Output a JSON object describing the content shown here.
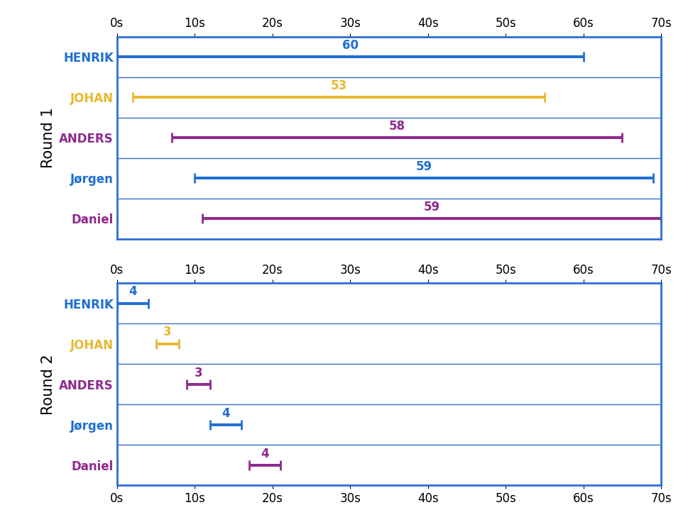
{
  "chart_data": [
    {
      "type": "bar",
      "orientation": "horizontal",
      "ylabel": "Round 1",
      "categories": [
        "HENRIK",
        "JOHAN",
        "ANDERS",
        "Jørgen",
        "Daniel"
      ],
      "starts": [
        0,
        2,
        7,
        10,
        11
      ],
      "values": [
        60,
        53,
        58,
        59,
        59
      ],
      "colors": [
        "#1f6fd1",
        "#e8b830",
        "#8e2a8e",
        "#1f6fd1",
        "#8e2a8e"
      ],
      "data_labels": true,
      "grid": true,
      "xlim": [
        0,
        70
      ],
      "xticks": [
        {
          "value": 0,
          "label": "0s"
        },
        {
          "value": 10,
          "label": "10s"
        },
        {
          "value": 20,
          "label": "20s"
        },
        {
          "value": 30,
          "label": "30s"
        },
        {
          "value": 40,
          "label": "40s"
        },
        {
          "value": 50,
          "label": "50s"
        },
        {
          "value": 60,
          "label": "60s"
        },
        {
          "value": 70,
          "label": "70s"
        }
      ]
    },
    {
      "type": "bar",
      "orientation": "horizontal",
      "ylabel": "Round 2",
      "categories": [
        "HENRIK",
        "JOHAN",
        "ANDERS",
        "Jørgen",
        "Daniel"
      ],
      "starts": [
        0,
        5,
        9,
        12,
        17
      ],
      "values": [
        4,
        3,
        3,
        4,
        4
      ],
      "colors": [
        "#1f6fd1",
        "#e8b830",
        "#8e2a8e",
        "#1f6fd1",
        "#8e2a8e"
      ],
      "data_labels": true,
      "grid": true,
      "xlim": [
        0,
        70
      ],
      "xticks": [
        {
          "value": 0,
          "label": "0s"
        },
        {
          "value": 10,
          "label": "10s"
        },
        {
          "value": 20,
          "label": "20s"
        },
        {
          "value": 30,
          "label": "30s"
        },
        {
          "value": 40,
          "label": "40s"
        },
        {
          "value": 50,
          "label": "50s"
        },
        {
          "value": 60,
          "label": "60s"
        },
        {
          "value": 70,
          "label": "70s"
        }
      ]
    }
  ]
}
